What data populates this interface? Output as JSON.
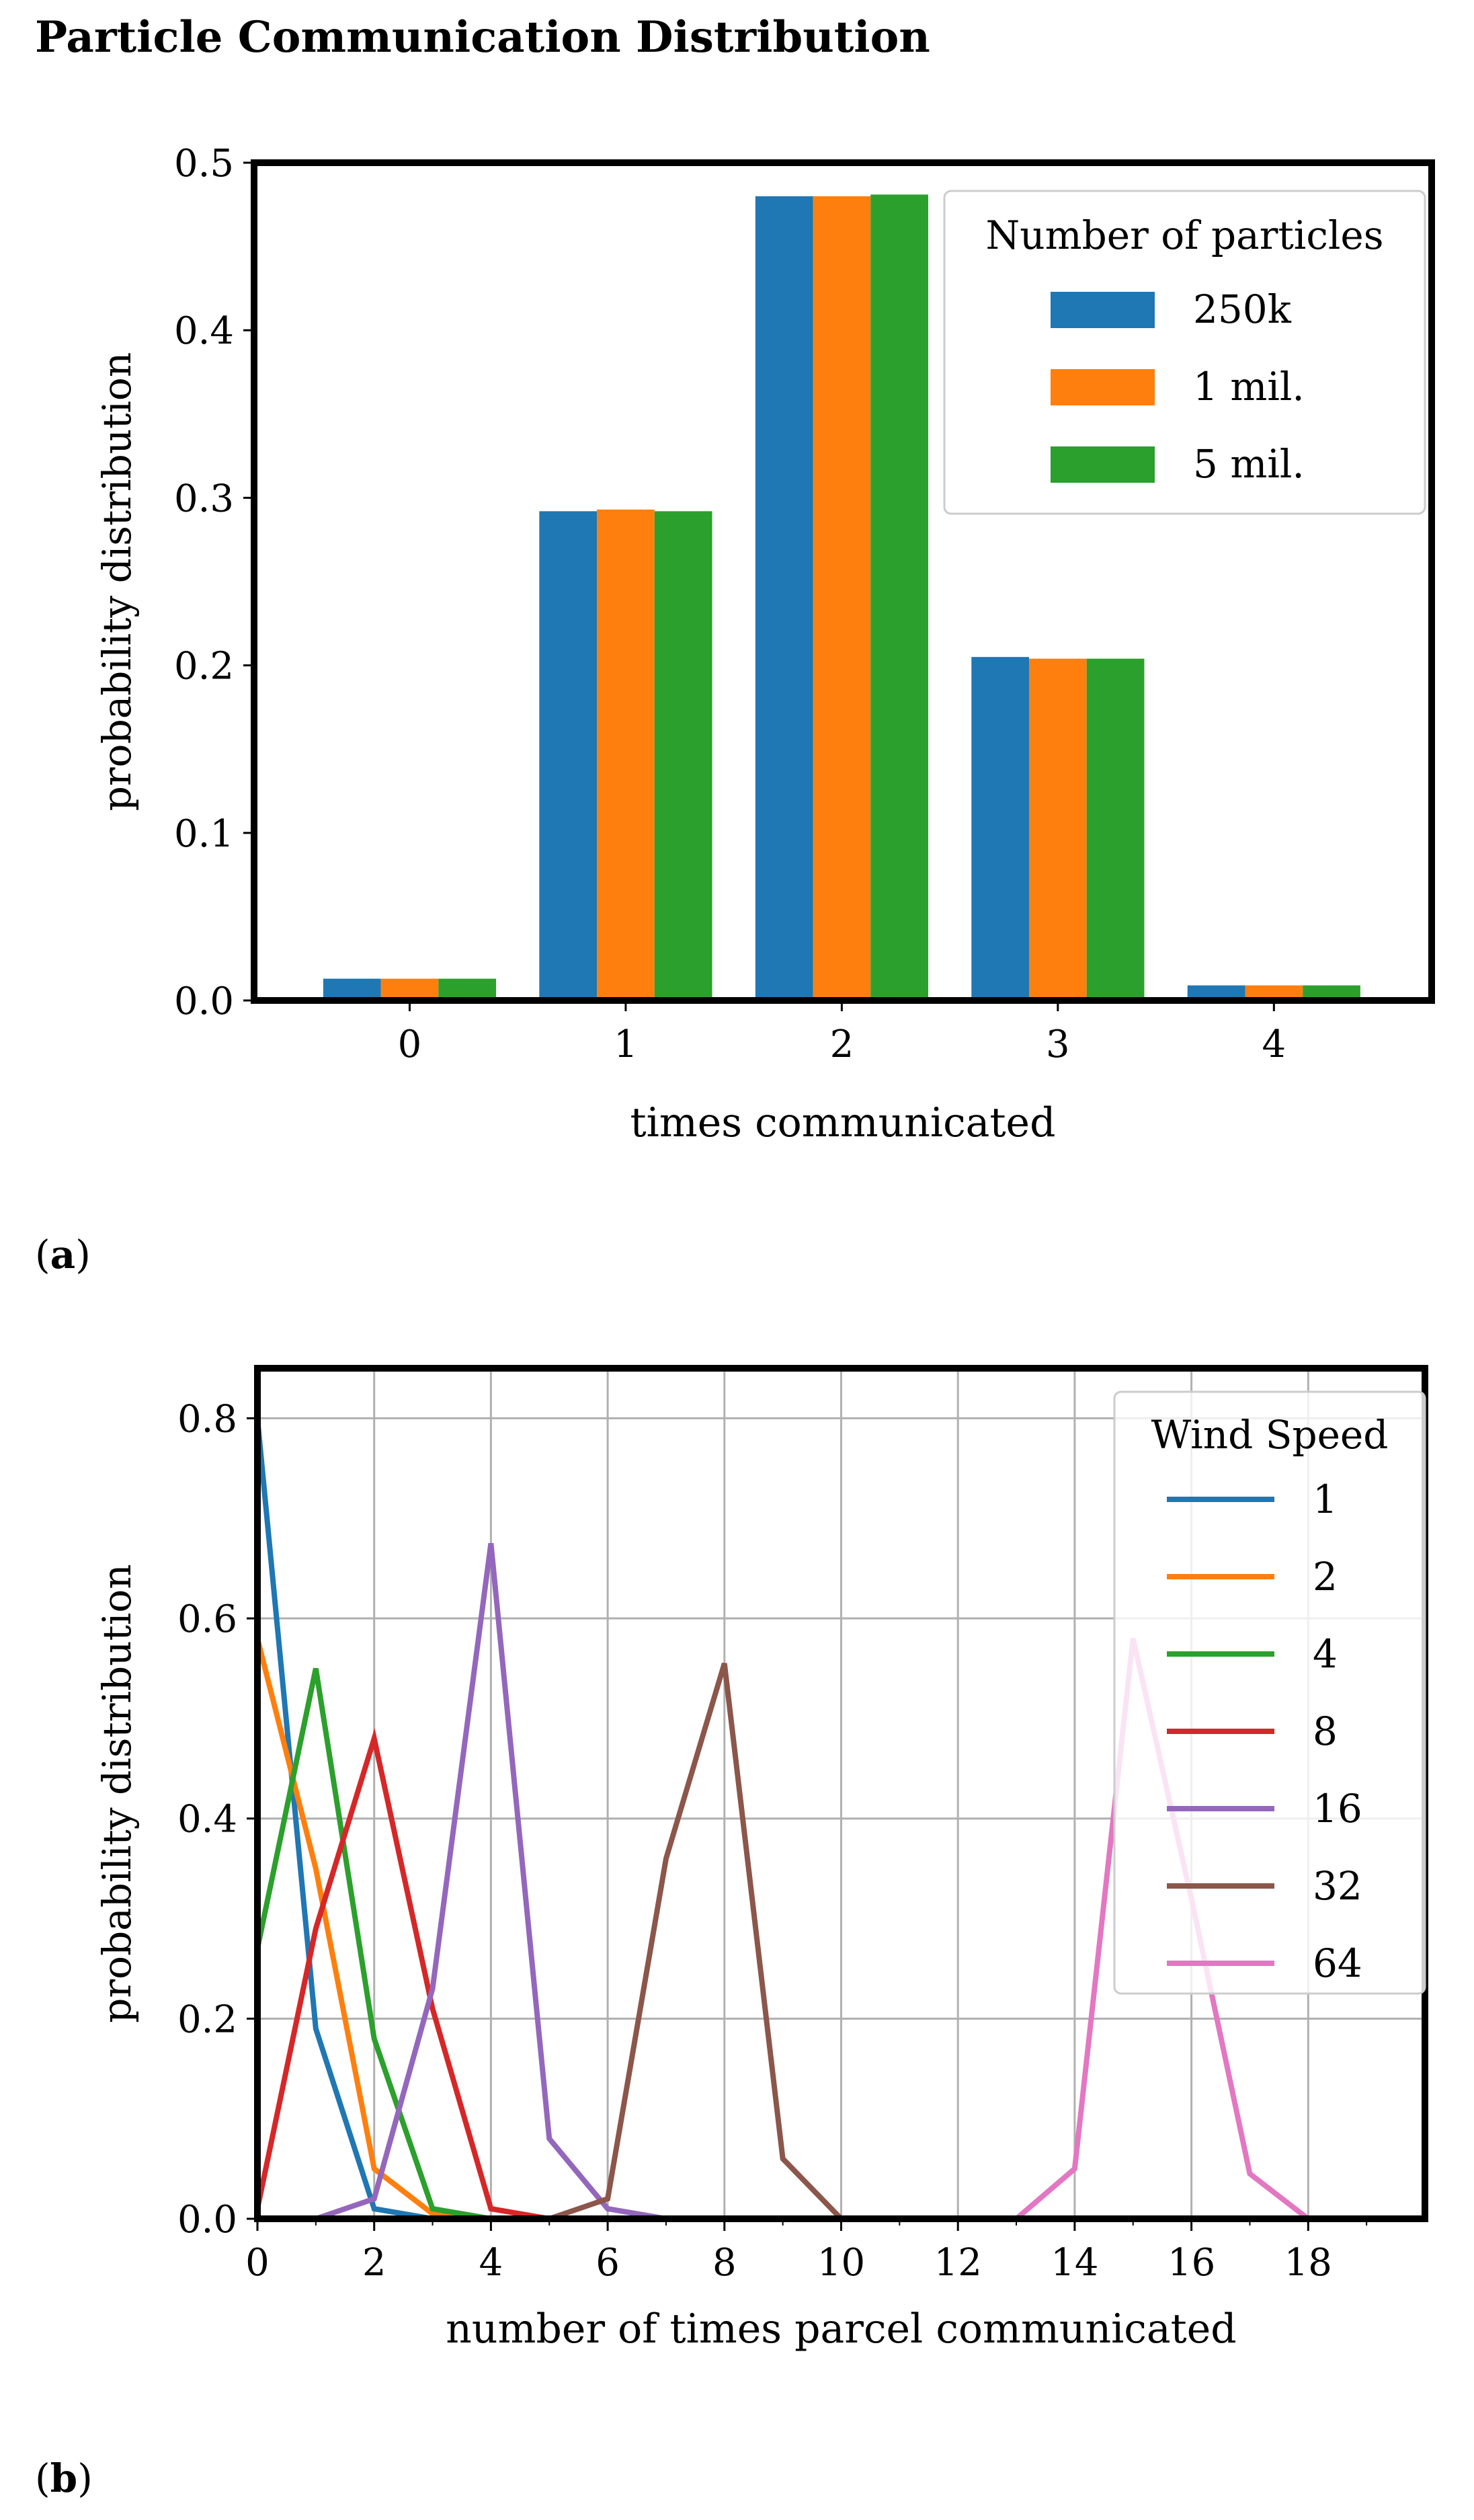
{
  "page": {
    "title": "Particle Communication Distribution",
    "label_a": "a",
    "label_b": "b"
  },
  "chart_data": [
    {
      "type": "bar",
      "title": "",
      "xlabel": "times communicated",
      "ylabel": "probability distribution",
      "categories": [
        "0",
        "1",
        "2",
        "3",
        "4"
      ],
      "ylim": [
        0,
        0.5
      ],
      "yticks": [
        "0.0",
        "0.1",
        "0.2",
        "0.3",
        "0.4",
        "0.5"
      ],
      "grid": false,
      "legend": {
        "title": "Number of particles",
        "placement": "top-right"
      },
      "series": [
        {
          "name": "250k",
          "color": "#1f77b4",
          "values": [
            0.013,
            0.292,
            0.48,
            0.205,
            0.009
          ]
        },
        {
          "name": "1 mil.",
          "color": "#ff7f0e",
          "values": [
            0.013,
            0.293,
            0.48,
            0.204,
            0.009
          ]
        },
        {
          "name": "5 mil.",
          "color": "#2ca02c",
          "values": [
            0.013,
            0.292,
            0.481,
            0.204,
            0.009
          ]
        }
      ]
    },
    {
      "type": "line",
      "title": "",
      "xlabel": "number of times parcel communicated",
      "ylabel": "probability distribution",
      "xlim": [
        0,
        20
      ],
      "ylim": [
        0,
        0.85
      ],
      "xticks": [
        "0",
        "2",
        "4",
        "6",
        "8",
        "10",
        "12",
        "14",
        "16",
        "18"
      ],
      "yticks": [
        "0.0",
        "0.2",
        "0.4",
        "0.6",
        "0.8"
      ],
      "grid": true,
      "legend": {
        "title": "Wind Speed",
        "placement": "top-right"
      },
      "series": [
        {
          "name": "1",
          "color": "#1f77b4",
          "x": [
            0,
            1,
            2,
            3,
            4,
            5,
            6,
            7,
            8,
            9,
            10,
            11,
            12,
            13,
            14,
            15,
            16,
            17,
            18,
            19
          ],
          "values": [
            0.8,
            0.19,
            0.01,
            0,
            0,
            0,
            0,
            0,
            0,
            0,
            0,
            0,
            0,
            0,
            0,
            0,
            0,
            0,
            0,
            0
          ]
        },
        {
          "name": "2",
          "color": "#ff7f0e",
          "x": [
            0,
            1,
            2,
            3,
            4,
            5,
            6,
            7,
            8,
            9,
            10,
            11,
            12,
            13,
            14,
            15,
            16,
            17,
            18,
            19
          ],
          "values": [
            0.58,
            0.35,
            0.05,
            0.005,
            0,
            0,
            0,
            0,
            0,
            0,
            0,
            0,
            0,
            0,
            0,
            0,
            0,
            0,
            0,
            0
          ]
        },
        {
          "name": "4",
          "color": "#2ca02c",
          "x": [
            0,
            1,
            2,
            3,
            4,
            5,
            6,
            7,
            8,
            9,
            10,
            11,
            12,
            13,
            14,
            15,
            16,
            17,
            18,
            19
          ],
          "values": [
            0.27,
            0.55,
            0.18,
            0.01,
            0,
            0,
            0,
            0,
            0,
            0,
            0,
            0,
            0,
            0,
            0,
            0,
            0,
            0,
            0,
            0
          ]
        },
        {
          "name": "8",
          "color": "#d62728",
          "x": [
            0,
            1,
            2,
            3,
            4,
            5,
            6,
            7,
            8,
            9,
            10,
            11,
            12,
            13,
            14,
            15,
            16,
            17,
            18,
            19
          ],
          "values": [
            0.01,
            0.29,
            0.48,
            0.21,
            0.01,
            0,
            0,
            0,
            0,
            0,
            0,
            0,
            0,
            0,
            0,
            0,
            0,
            0,
            0,
            0
          ]
        },
        {
          "name": "16",
          "color": "#9467bd",
          "x": [
            0,
            1,
            2,
            3,
            4,
            5,
            6,
            7,
            8,
            9,
            10,
            11,
            12,
            13,
            14,
            15,
            16,
            17,
            18,
            19
          ],
          "values": [
            0,
            0,
            0.02,
            0.23,
            0.675,
            0.08,
            0.01,
            0,
            0,
            0,
            0,
            0,
            0,
            0,
            0,
            0,
            0,
            0,
            0,
            0
          ]
        },
        {
          "name": "32",
          "color": "#8c564b",
          "x": [
            0,
            1,
            2,
            3,
            4,
            5,
            6,
            7,
            8,
            9,
            10,
            11,
            12,
            13,
            14,
            15,
            16,
            17,
            18,
            19
          ],
          "values": [
            0,
            0,
            0,
            0,
            0,
            0,
            0.02,
            0.36,
            0.555,
            0.06,
            0,
            0,
            0,
            0,
            0,
            0,
            0,
            0,
            0,
            0
          ]
        },
        {
          "name": "64",
          "color": "#e377c2",
          "x": [
            0,
            1,
            2,
            3,
            4,
            5,
            6,
            7,
            8,
            9,
            10,
            11,
            12,
            13,
            14,
            15,
            16,
            17,
            18,
            19
          ],
          "values": [
            0,
            0,
            0,
            0,
            0,
            0,
            0,
            0,
            0,
            0,
            0,
            0,
            0,
            0,
            0.05,
            0.58,
            0.32,
            0.045,
            0,
            0
          ]
        }
      ]
    }
  ]
}
